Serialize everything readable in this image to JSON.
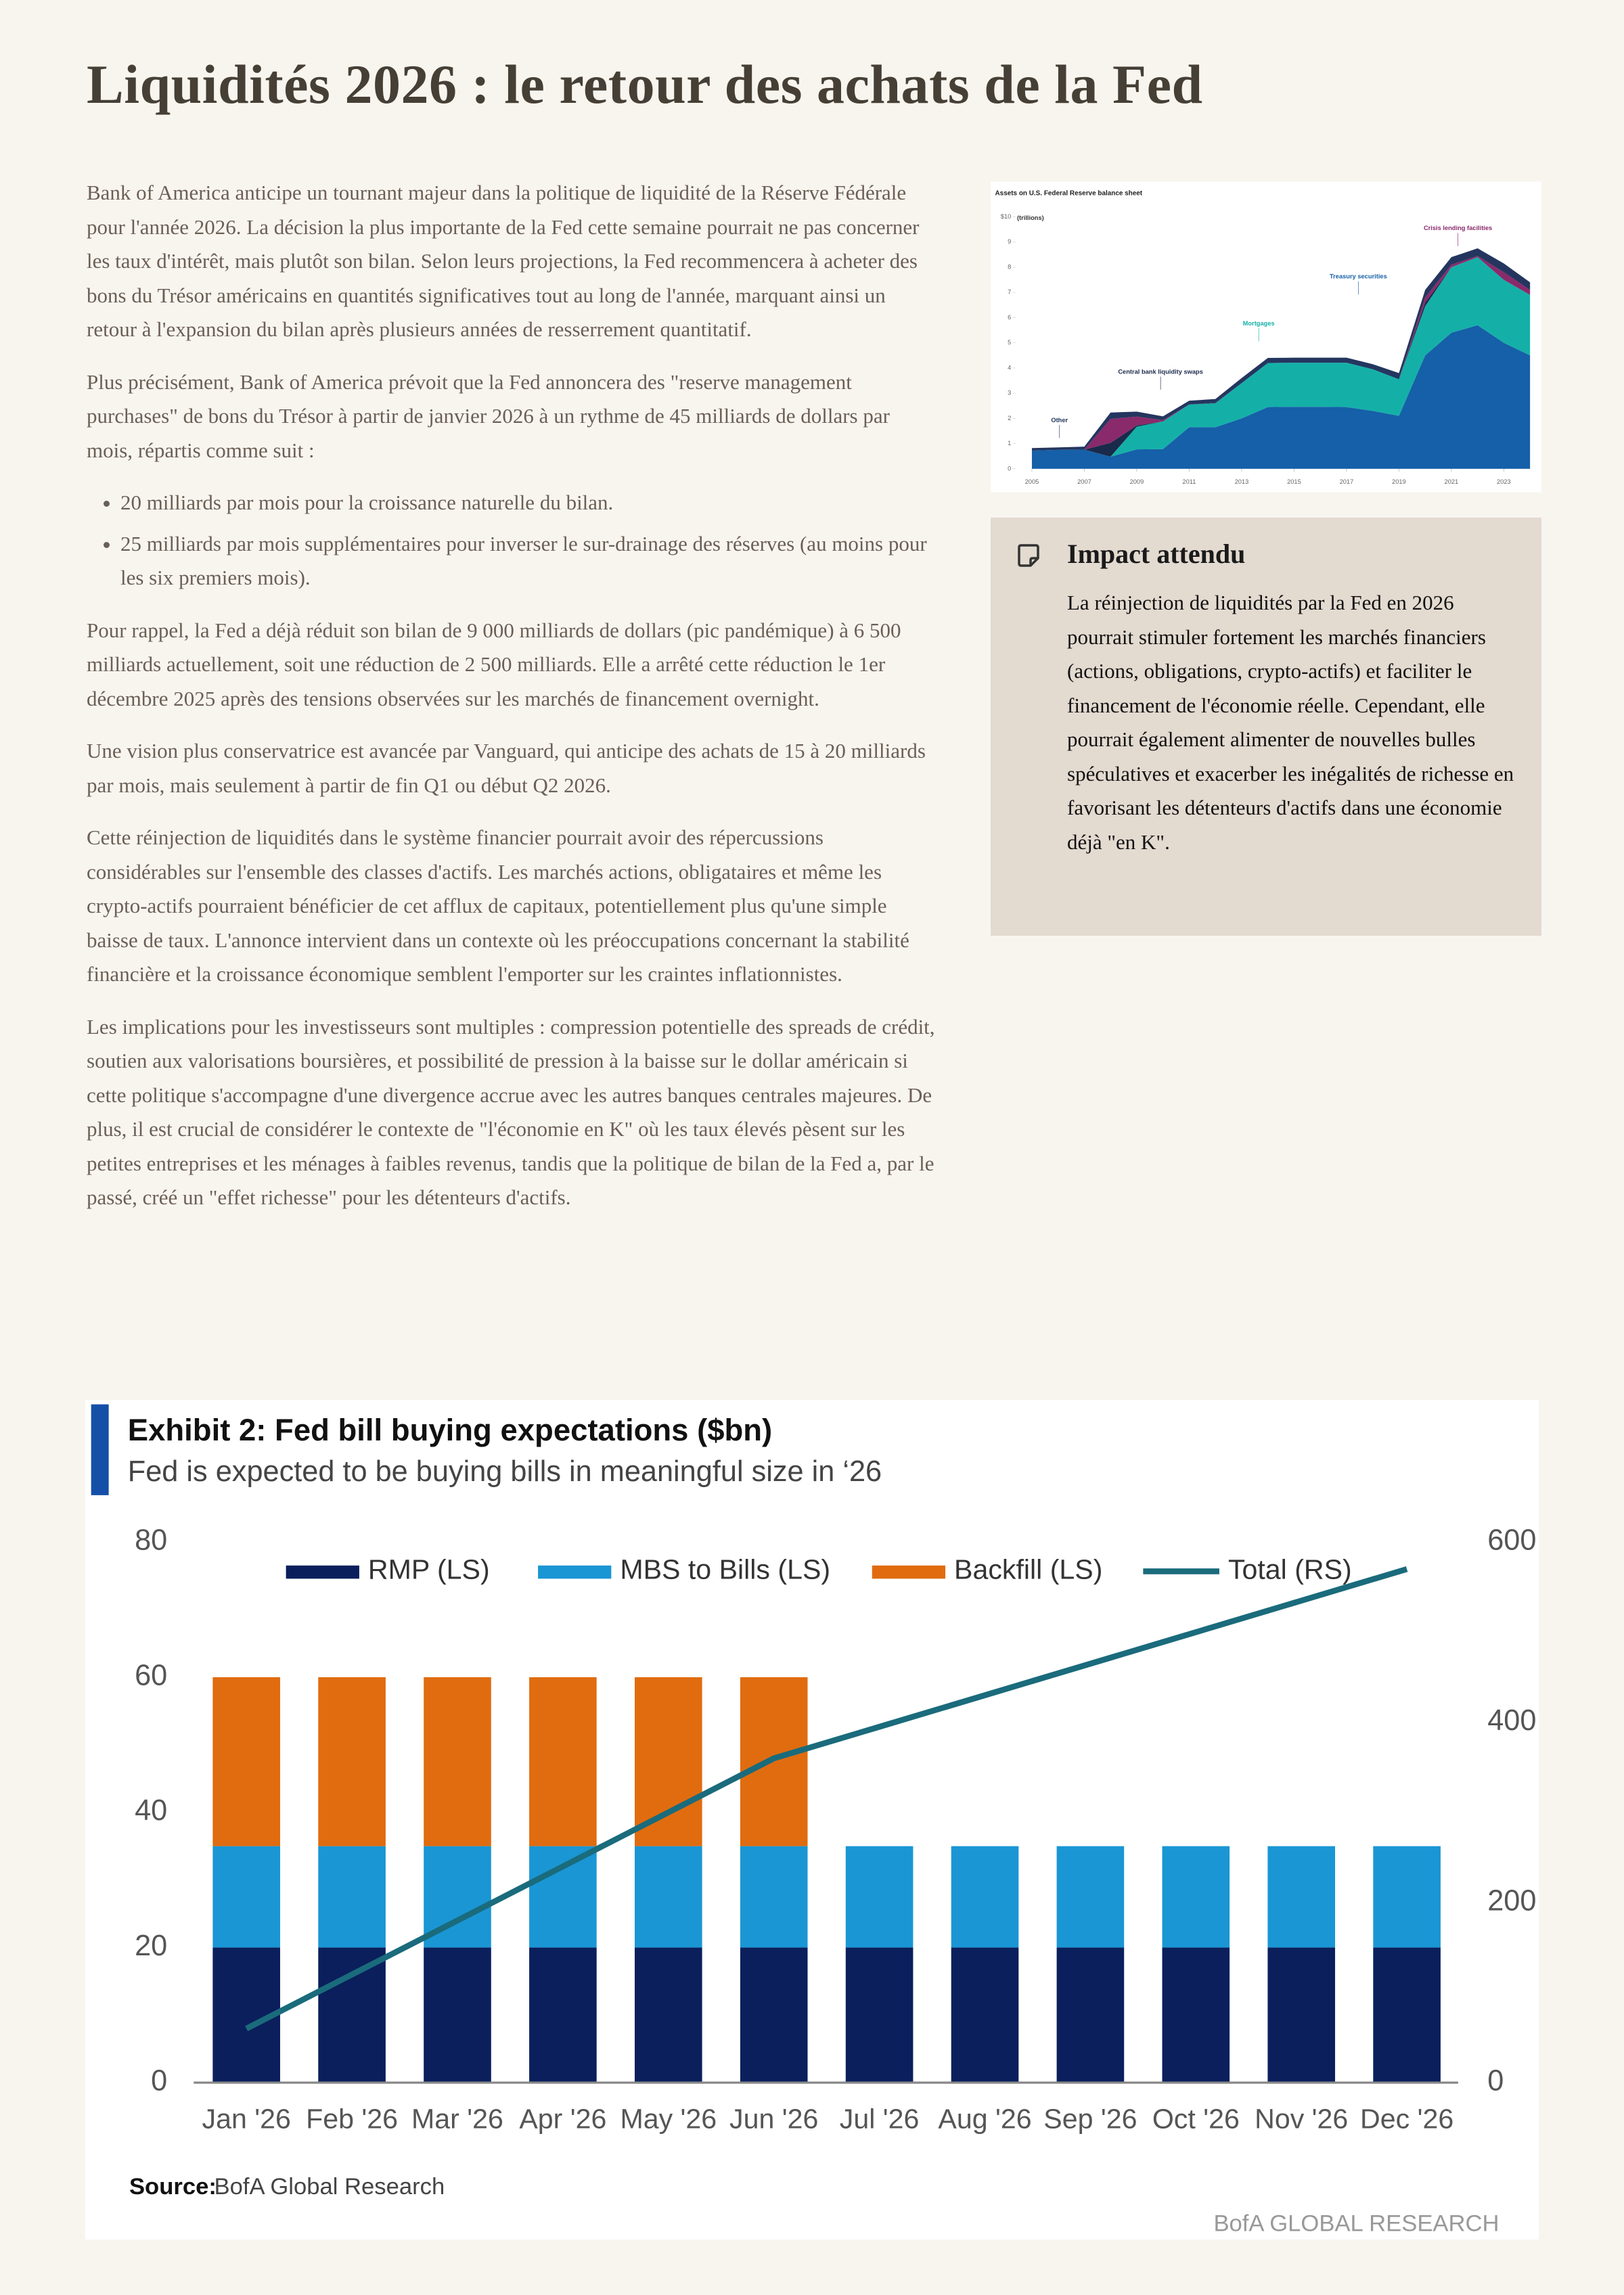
{
  "title": "Liquidités 2026 : le retour des achats de la Fed",
  "intro": [
    "Bank of America anticipe un tournant majeur dans la politique de liquidité de la Réserve Fédérale pour l'année 2026. La décision la plus importante de la Fed cette semaine pourrait ne pas concerner les taux d'intérêt, mais plutôt son bilan. Selon leurs projections, la Fed recommencera à acheter des bons du Trésor américains en quantités significatives tout au long de l'année, marquant ainsi un retour à l'expansion du bilan après plusieurs années de resserrement quantitatif.",
    "Plus précisément, Bank of America prévoit que la Fed annoncera des \"reserve management purchases\" de bons du Trésor à partir de janvier 2026 à un rythme de 45 milliards de dollars par mois, répartis comme suit :"
  ],
  "bullets": [
    "20 milliards par mois pour la croissance naturelle du bilan.",
    "25 milliards par mois supplémentaires pour inverser le sur-drainage des réserves (au moins pour les six premiers mois)."
  ],
  "paragraphs": [
    "Pour rappel, la Fed a déjà réduit son bilan de 9 000 milliards de dollars (pic pandémique) à 6 500 milliards actuellement, soit une réduction de 2 500 milliards. Elle a arrêté cette réduction le 1er décembre 2025 après des tensions observées sur les marchés de financement overnight.",
    "Une vision plus conservatrice est avancée par Vanguard, qui anticipe des achats de 15 à 20 milliards par mois, mais seulement à partir de fin Q1 ou début Q2 2026.",
    "Cette réinjection de liquidités dans le système financier pourrait avoir des répercussions considérables sur l'ensemble des classes d'actifs. Les marchés actions, obligataires et même les crypto-actifs pourraient bénéficier de cet afflux de capitaux, potentiellement plus qu'une simple baisse de taux. L'annonce intervient dans un contexte où les préoccupations concernant la stabilité financière et la croissance économique semblent l'emporter sur les craintes inflationnistes.",
    "Les implications pour les investisseurs sont multiples : compression potentielle des spreads de crédit, soutien aux valorisations boursières, et possibilité de pression à la baisse sur le dollar américain si cette politique s'accompagne d'une divergence accrue avec les autres banques centrales majeures. De plus, il est crucial de considérer le contexte de \"l'économie en K\" où les taux élevés pèsent sur les petites entreprises et les ménages à faibles revenus, tandis que la politique de bilan de la Fed a, par le passé, créé un \"effet richesse\" pour les détenteurs d'actifs."
  ],
  "callout": {
    "title": "Impact attendu",
    "text": "La réinjection de liquidités par la Fed en 2026 pourrait stimuler fortement les marchés financiers (actions, obligations, crypto-actifs) et faciliter le financement de l'économie réelle. Cependant, elle pourrait également alimenter de nouvelles bulles spéculatives et exacerber les inégalités de richesse en favorisant les détenteurs d'actifs dans une économie déjà \"en K\"."
  },
  "chart_data": [
    {
      "type": "area",
      "stacked": true,
      "title": "Assets on U.S. Federal Reserve balance sheet",
      "y_unit": "(trillions)",
      "x": [
        2005,
        2006,
        2007,
        2008,
        2009,
        2010,
        2011,
        2012,
        2013,
        2014,
        2015,
        2016,
        2017,
        2018,
        2019,
        2020,
        2021,
        2022,
        2023,
        2024
      ],
      "xlim": [
        2004.6,
        2024.1
      ],
      "xticks": [
        2005,
        2007,
        2009,
        2011,
        2013,
        2015,
        2017,
        2019,
        2021,
        2023
      ],
      "ylim": [
        0,
        10
      ],
      "yticks": [
        0,
        1,
        2,
        3,
        4,
        5,
        6,
        7,
        8,
        9,
        {
          "value": 10,
          "label": "$10"
        }
      ],
      "series": [
        {
          "name": "Treasury securities",
          "color": "#1560a8",
          "values": [
            0.72,
            0.75,
            0.76,
            0.48,
            0.77,
            0.78,
            1.65,
            1.65,
            2.0,
            2.45,
            2.46,
            2.46,
            2.45,
            2.3,
            2.1,
            4.5,
            5.4,
            5.7,
            5.0,
            4.5
          ]
        },
        {
          "name": "Mortgages",
          "color": "#14b0a8",
          "values": [
            0,
            0,
            0,
            0,
            0.9,
            1.1,
            0.9,
            0.95,
            1.4,
            1.75,
            1.75,
            1.75,
            1.76,
            1.65,
            1.45,
            1.95,
            2.6,
            2.7,
            2.5,
            2.4
          ]
        },
        {
          "name": "Central bank liquidity swaps",
          "color": "#1a2a4a",
          "values": [
            0,
            0,
            0,
            0.55,
            0.05,
            0,
            0,
            0.02,
            0,
            0,
            0,
            0,
            0,
            0,
            0,
            0.15,
            0,
            0,
            0,
            0
          ]
        },
        {
          "name": "Crisis lending facilities",
          "color": "#8a2a6b",
          "values": [
            0,
            0,
            0,
            0.95,
            0.35,
            0.05,
            0,
            0,
            0,
            0,
            0,
            0,
            0,
            0,
            0,
            0.2,
            0.1,
            0.05,
            0.3,
            0.2
          ]
        },
        {
          "name": "Other",
          "color": "#24365f",
          "values": [
            0.1,
            0.1,
            0.12,
            0.25,
            0.2,
            0.15,
            0.15,
            0.15,
            0.2,
            0.2,
            0.2,
            0.2,
            0.2,
            0.2,
            0.25,
            0.3,
            0.3,
            0.3,
            0.35,
            0.3
          ]
        }
      ]
    },
    {
      "type": "bar",
      "stacked": true,
      "title": "Exhibit 2: Fed bill buying expectations ($bn)",
      "subtitle": "Fed is expected to be buying bills in meaningful size in ‘26",
      "categories": [
        "Jan '26",
        "Feb '26",
        "Mar '26",
        "Apr '26",
        "May '26",
        "Jun '26",
        "Jul '26",
        "Aug '26",
        "Sep '26",
        "Oct '26",
        "Nov '26",
        "Dec '26"
      ],
      "ylim": [
        0,
        80
      ],
      "yticks": [
        0,
        20,
        40,
        60,
        80
      ],
      "y2lim": [
        0,
        600
      ],
      "y2ticks": [
        0,
        200,
        400,
        600
      ],
      "series": [
        {
          "name": "RMP (LS)",
          "color": "#0a1f5c",
          "values": [
            20,
            20,
            20,
            20,
            20,
            20,
            20,
            20,
            20,
            20,
            20,
            20
          ]
        },
        {
          "name": "MBS to Bills (LS)",
          "color": "#1a96d4",
          "values": [
            15,
            15,
            15,
            15,
            15,
            15,
            15,
            15,
            15,
            15,
            15,
            15
          ]
        },
        {
          "name": "Backfill (LS)",
          "color": "#e06c0f",
          "values": [
            25,
            25,
            25,
            25,
            25,
            25,
            0,
            0,
            0,
            0,
            0,
            0
          ]
        },
        {
          "name": "Total (RS)",
          "type": "line",
          "axis": "y2",
          "color": "#1a6b7c",
          "values": [
            60,
            120,
            180,
            240,
            300,
            360,
            395,
            430,
            465,
            500,
            535,
            570
          ]
        }
      ],
      "source_label": "Source:",
      "source": "BofA Global Research",
      "watermark": "BofA GLOBAL RESEARCH"
    }
  ]
}
